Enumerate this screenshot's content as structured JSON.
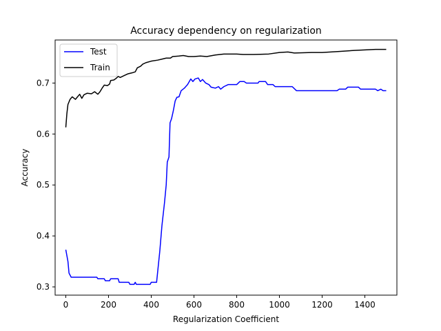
{
  "chart_data": {
    "type": "line",
    "title": "Accuracy dependency on regularization",
    "xlabel": "Regularization Coefficient",
    "ylabel": "Accuracy",
    "xlim": [
      -50,
      1550
    ],
    "ylim": [
      0.2838,
      0.7845
    ],
    "xticks": [
      0,
      200,
      400,
      600,
      800,
      1000,
      1200,
      1400
    ],
    "yticks": [
      0.3,
      0.4,
      0.5,
      0.6,
      0.7
    ],
    "ytick_labels": [
      "0.3",
      "0.4",
      "0.5",
      "0.6",
      "0.7"
    ],
    "grid": false,
    "legend_position": "top-left",
    "series": [
      {
        "name": "Test",
        "color": "#0000ff",
        "points": [
          [
            0,
            0.373
          ],
          [
            10,
            0.35
          ],
          [
            15,
            0.327
          ],
          [
            20,
            0.323
          ],
          [
            25,
            0.319
          ],
          [
            60,
            0.319
          ],
          [
            100,
            0.319
          ],
          [
            145,
            0.319
          ],
          [
            150,
            0.316
          ],
          [
            180,
            0.316
          ],
          [
            185,
            0.312
          ],
          [
            205,
            0.312
          ],
          [
            210,
            0.316
          ],
          [
            245,
            0.316
          ],
          [
            250,
            0.309
          ],
          [
            295,
            0.309
          ],
          [
            300,
            0.305
          ],
          [
            320,
            0.305
          ],
          [
            325,
            0.309
          ],
          [
            330,
            0.305
          ],
          [
            395,
            0.305
          ],
          [
            400,
            0.309
          ],
          [
            425,
            0.309
          ],
          [
            440,
            0.37
          ],
          [
            450,
            0.42
          ],
          [
            462,
            0.465
          ],
          [
            470,
            0.5
          ],
          [
            475,
            0.545
          ],
          [
            483,
            0.555
          ],
          [
            488,
            0.622
          ],
          [
            495,
            0.63
          ],
          [
            503,
            0.645
          ],
          [
            512,
            0.665
          ],
          [
            520,
            0.672
          ],
          [
            530,
            0.673
          ],
          [
            540,
            0.685
          ],
          [
            555,
            0.69
          ],
          [
            570,
            0.697
          ],
          [
            585,
            0.708
          ],
          [
            595,
            0.703
          ],
          [
            605,
            0.708
          ],
          [
            620,
            0.71
          ],
          [
            630,
            0.703
          ],
          [
            640,
            0.707
          ],
          [
            655,
            0.7
          ],
          [
            670,
            0.697
          ],
          [
            680,
            0.692
          ],
          [
            700,
            0.69
          ],
          [
            715,
            0.693
          ],
          [
            725,
            0.688
          ],
          [
            740,
            0.693
          ],
          [
            760,
            0.697
          ],
          [
            800,
            0.697
          ],
          [
            815,
            0.703
          ],
          [
            835,
            0.703
          ],
          [
            845,
            0.7
          ],
          [
            900,
            0.7
          ],
          [
            905,
            0.703
          ],
          [
            935,
            0.703
          ],
          [
            945,
            0.697
          ],
          [
            970,
            0.697
          ],
          [
            980,
            0.693
          ],
          [
            1060,
            0.693
          ],
          [
            1080,
            0.685
          ],
          [
            1270,
            0.685
          ],
          [
            1280,
            0.688
          ],
          [
            1310,
            0.688
          ],
          [
            1320,
            0.692
          ],
          [
            1370,
            0.692
          ],
          [
            1380,
            0.688
          ],
          [
            1450,
            0.688
          ],
          [
            1460,
            0.685
          ],
          [
            1475,
            0.688
          ],
          [
            1485,
            0.685
          ],
          [
            1500,
            0.685
          ]
        ]
      },
      {
        "name": "Train",
        "color": "#000000",
        "points": [
          [
            0,
            0.613
          ],
          [
            5,
            0.64
          ],
          [
            10,
            0.658
          ],
          [
            20,
            0.668
          ],
          [
            30,
            0.673
          ],
          [
            45,
            0.668
          ],
          [
            55,
            0.673
          ],
          [
            65,
            0.678
          ],
          [
            75,
            0.67
          ],
          [
            85,
            0.677
          ],
          [
            100,
            0.68
          ],
          [
            120,
            0.679
          ],
          [
            135,
            0.683
          ],
          [
            150,
            0.678
          ],
          [
            160,
            0.683
          ],
          [
            170,
            0.69
          ],
          [
            180,
            0.696
          ],
          [
            195,
            0.695
          ],
          [
            205,
            0.698
          ],
          [
            210,
            0.705
          ],
          [
            225,
            0.706
          ],
          [
            235,
            0.709
          ],
          [
            245,
            0.713
          ],
          [
            255,
            0.711
          ],
          [
            275,
            0.715
          ],
          [
            290,
            0.718
          ],
          [
            310,
            0.72
          ],
          [
            325,
            0.722
          ],
          [
            335,
            0.73
          ],
          [
            350,
            0.733
          ],
          [
            360,
            0.737
          ],
          [
            375,
            0.74
          ],
          [
            400,
            0.743
          ],
          [
            430,
            0.745
          ],
          [
            450,
            0.747
          ],
          [
            470,
            0.749
          ],
          [
            490,
            0.749
          ],
          [
            500,
            0.752
          ],
          [
            530,
            0.753
          ],
          [
            550,
            0.754
          ],
          [
            575,
            0.752
          ],
          [
            600,
            0.752
          ],
          [
            630,
            0.753
          ],
          [
            660,
            0.752
          ],
          [
            700,
            0.755
          ],
          [
            740,
            0.757
          ],
          [
            800,
            0.757
          ],
          [
            830,
            0.756
          ],
          [
            880,
            0.756
          ],
          [
            950,
            0.757
          ],
          [
            1000,
            0.76
          ],
          [
            1040,
            0.761
          ],
          [
            1070,
            0.759
          ],
          [
            1150,
            0.76
          ],
          [
            1200,
            0.76
          ],
          [
            1280,
            0.762
          ],
          [
            1350,
            0.764
          ],
          [
            1400,
            0.765
          ],
          [
            1450,
            0.766
          ],
          [
            1500,
            0.766
          ]
        ]
      }
    ]
  }
}
